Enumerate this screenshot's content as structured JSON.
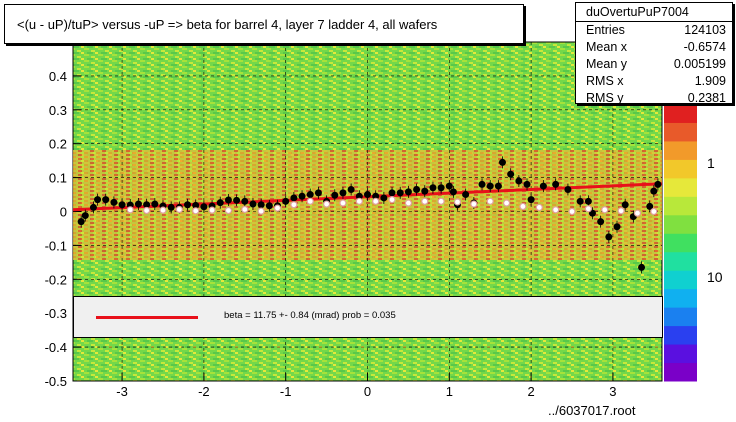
{
  "title": "<(u - uP)/tuP> versus  -uP => beta for barrel 4, layer 7 ladder 4, all wafers",
  "stats": {
    "name": "duOvertuPuP7004",
    "rows": [
      {
        "key": "Entries",
        "value": "124103"
      },
      {
        "key": "Mean x",
        "value": "-0.6574"
      },
      {
        "key": "Mean y",
        "value": "0.005199"
      },
      {
        "key": "RMS x",
        "value": "1.909"
      },
      {
        "key": "RMS y",
        "value": "0.2381"
      }
    ]
  },
  "legend": {
    "label": "beta =    11.75 +-  0.84 (mrad) prob = 0.035",
    "color": "#e8101a"
  },
  "footer": "../6037017.root",
  "colors": {
    "fit": "#e8101a",
    "points": "#000000",
    "profile_marker": "#e0a0a0"
  },
  "chart_data": {
    "type": "scatter",
    "xlim": [
      -3.6,
      3.6
    ],
    "ylim": [
      -0.5,
      0.5
    ],
    "x_ticks": [
      -3,
      -2,
      -1,
      0,
      1,
      2,
      3
    ],
    "y_ticks": [
      -0.5,
      -0.4,
      -0.3,
      -0.2,
      -0.1,
      0,
      0.1,
      0.2,
      0.3,
      0.4
    ],
    "z_axis_labels": [
      "1",
      "10"
    ],
    "grid": true,
    "fit_line": {
      "x": [
        -3.6,
        3.6
      ],
      "y": [
        0.005,
        0.082
      ]
    },
    "series": [
      {
        "marker": "black-dot",
        "points": [
          [
            -3.5,
            -0.03
          ],
          [
            -3.45,
            -0.012
          ],
          [
            -3.35,
            0.012
          ],
          [
            -3.3,
            0.035
          ],
          [
            -3.2,
            0.035
          ],
          [
            -3.1,
            0.027
          ],
          [
            -3.0,
            0.02
          ],
          [
            -2.9,
            0.019
          ],
          [
            -2.8,
            0.022
          ],
          [
            -2.7,
            0.02
          ],
          [
            -2.6,
            0.022
          ],
          [
            -2.5,
            0.016
          ],
          [
            -2.4,
            0.012
          ],
          [
            -2.3,
            0.012
          ],
          [
            -2.2,
            0.02
          ],
          [
            -2.1,
            0.018
          ],
          [
            -2.0,
            0.014
          ],
          [
            -1.9,
            0.016
          ],
          [
            -1.8,
            0.026
          ],
          [
            -1.7,
            0.034
          ],
          [
            -1.6,
            0.033
          ],
          [
            -1.5,
            0.03
          ],
          [
            -1.4,
            0.022
          ],
          [
            -1.3,
            0.02
          ],
          [
            -1.2,
            0.017
          ],
          [
            -1.1,
            0.017
          ],
          [
            -1.0,
            0.03
          ],
          [
            -0.9,
            0.04
          ],
          [
            -0.8,
            0.045
          ],
          [
            -0.7,
            0.05
          ],
          [
            -0.6,
            0.055
          ],
          [
            -0.5,
            0.03
          ],
          [
            -0.4,
            0.048
          ],
          [
            -0.3,
            0.055
          ],
          [
            -0.2,
            0.065
          ],
          [
            -0.1,
            0.045
          ],
          [
            0.0,
            0.05
          ],
          [
            0.1,
            0.045
          ],
          [
            0.2,
            0.04
          ],
          [
            0.3,
            0.055
          ],
          [
            0.4,
            0.055
          ],
          [
            0.5,
            0.058
          ],
          [
            0.6,
            0.065
          ],
          [
            0.7,
            0.06
          ],
          [
            0.8,
            0.07
          ],
          [
            0.9,
            0.07
          ],
          [
            1.0,
            0.075
          ],
          [
            1.05,
            0.058
          ],
          [
            1.1,
            0.02
          ],
          [
            1.2,
            0.05
          ],
          [
            1.3,
            0.025
          ],
          [
            1.4,
            0.08
          ],
          [
            1.5,
            0.075
          ],
          [
            1.6,
            0.075
          ],
          [
            1.65,
            0.145
          ],
          [
            1.75,
            0.11
          ],
          [
            1.85,
            0.09
          ],
          [
            1.95,
            0.08
          ],
          [
            2.0,
            0.035
          ],
          [
            2.15,
            0.075
          ],
          [
            2.3,
            0.08
          ],
          [
            2.45,
            0.065
          ],
          [
            2.6,
            0.03
          ],
          [
            2.7,
            0.03
          ],
          [
            2.75,
            -0.005
          ],
          [
            2.85,
            -0.03
          ],
          [
            2.95,
            -0.075
          ],
          [
            3.05,
            -0.045
          ],
          [
            3.15,
            0.02
          ],
          [
            3.25,
            -0.015
          ],
          [
            3.35,
            -0.165
          ],
          [
            3.45,
            0.015
          ],
          [
            3.5,
            0.06
          ],
          [
            3.55,
            0.08
          ]
        ]
      },
      {
        "marker": "open-circle",
        "points": [
          [
            -2.9,
            0.005
          ],
          [
            -2.7,
            0.003
          ],
          [
            -2.5,
            0.004
          ],
          [
            -2.3,
            0.006
          ],
          [
            -2.1,
            0.002
          ],
          [
            -1.9,
            0.004
          ],
          [
            -1.7,
            0.003
          ],
          [
            -1.5,
            0.006
          ],
          [
            -1.3,
            0.001
          ],
          [
            -1.1,
            0.01
          ],
          [
            -0.9,
            0.02
          ],
          [
            -0.7,
            0.03
          ],
          [
            -0.5,
            0.022
          ],
          [
            -0.3,
            0.025
          ],
          [
            -0.1,
            0.03
          ],
          [
            0.1,
            0.03
          ],
          [
            0.3,
            0.035
          ],
          [
            0.5,
            0.025
          ],
          [
            0.7,
            0.03
          ],
          [
            0.9,
            0.03
          ],
          [
            1.1,
            0.028
          ],
          [
            1.3,
            0.022
          ],
          [
            1.5,
            0.03
          ],
          [
            1.7,
            0.025
          ],
          [
            1.9,
            0.015
          ],
          [
            2.1,
            0.012
          ],
          [
            2.3,
            0.005
          ],
          [
            2.5,
            0.0
          ],
          [
            2.7,
            0.008
          ],
          [
            2.9,
            0.005
          ],
          [
            3.1,
            0.002
          ],
          [
            3.3,
            -0.005
          ],
          [
            3.5,
            0.0
          ]
        ]
      }
    ]
  }
}
